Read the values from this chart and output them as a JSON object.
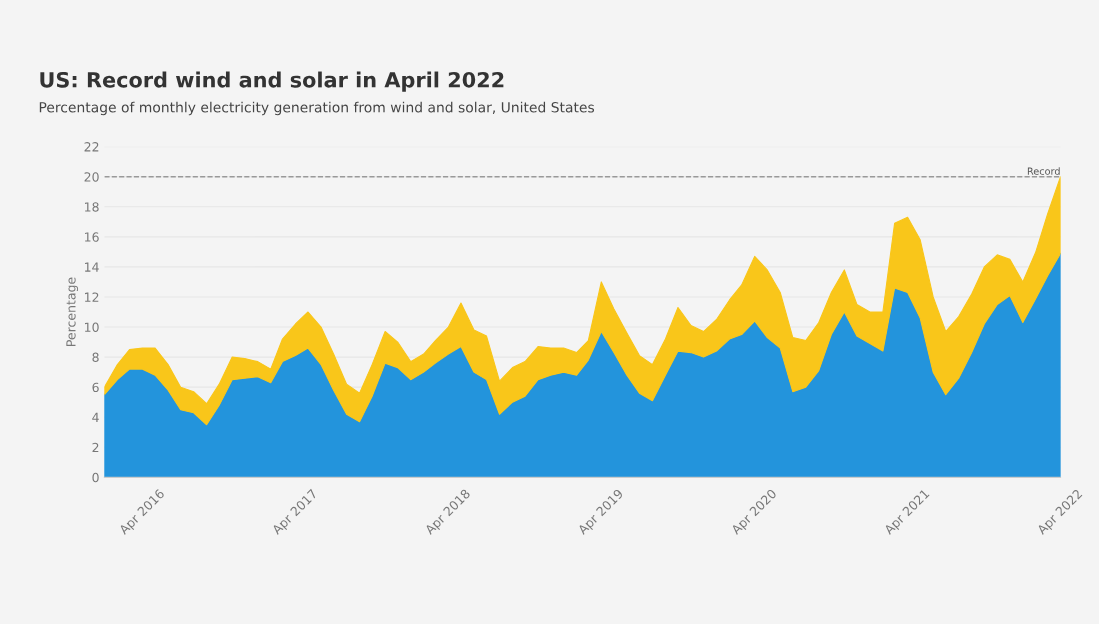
{
  "chart_data": {
    "type": "area",
    "stacked": true,
    "title": "US: Record wind and solar in April 2022",
    "subtitle": "Percentage of monthly electricity generation from wind and solar, United States",
    "ylabel": "Percentage",
    "x": [
      "2016-01",
      "2016-02",
      "2016-03",
      "2016-04",
      "2016-05",
      "2016-06",
      "2016-07",
      "2016-08",
      "2016-09",
      "2016-10",
      "2016-11",
      "2016-12",
      "2017-01",
      "2017-02",
      "2017-03",
      "2017-04",
      "2017-05",
      "2017-06",
      "2017-07",
      "2017-08",
      "2017-09",
      "2017-10",
      "2017-11",
      "2017-12",
      "2018-01",
      "2018-02",
      "2018-03",
      "2018-04",
      "2018-05",
      "2018-06",
      "2018-07",
      "2018-08",
      "2018-09",
      "2018-10",
      "2018-11",
      "2018-12",
      "2019-01",
      "2019-02",
      "2019-03",
      "2019-04",
      "2019-05",
      "2019-06",
      "2019-07",
      "2019-08",
      "2019-09",
      "2019-10",
      "2019-11",
      "2019-12",
      "2020-01",
      "2020-02",
      "2020-03",
      "2020-04",
      "2020-05",
      "2020-06",
      "2020-07",
      "2020-08",
      "2020-09",
      "2020-10",
      "2020-11",
      "2020-12",
      "2021-01",
      "2021-02",
      "2021-03",
      "2021-04",
      "2021-05",
      "2021-06",
      "2021-07",
      "2021-08",
      "2021-09",
      "2021-10",
      "2021-11",
      "2021-12",
      "2022-01",
      "2022-02",
      "2022-03",
      "2022-04"
    ],
    "series": [
      {
        "color": "#2394dc",
        "values": [
          5.5,
          6.5,
          7.2,
          7.2,
          6.8,
          5.8,
          4.5,
          4.3,
          3.5,
          4.8,
          6.5,
          6.6,
          6.7,
          6.3,
          7.7,
          8.1,
          8.6,
          7.5,
          5.8,
          4.2,
          3.7,
          5.4,
          7.6,
          7.3,
          6.5,
          7.0,
          7.6,
          8.2,
          8.7,
          7.0,
          6.5,
          4.2,
          5.0,
          5.4,
          6.5,
          6.8,
          7.0,
          6.8,
          7.8,
          9.7,
          8.3,
          6.8,
          5.6,
          5.1,
          6.8,
          8.4,
          8.3,
          8.0,
          8.4,
          9.2,
          9.5,
          10.4,
          9.3,
          8.6,
          5.7,
          6.0,
          7.1,
          9.5,
          11.0,
          9.4,
          8.9,
          8.4,
          12.6,
          12.3,
          10.6,
          7.0,
          5.5,
          6.6,
          8.3,
          10.2,
          11.5,
          12.1,
          10.3,
          11.9,
          13.4,
          14.9
        ]
      },
      {
        "color": "#f9c61a",
        "values": [
          0.5,
          1.0,
          1.3,
          1.4,
          1.8,
          1.7,
          1.5,
          1.4,
          1.4,
          1.4,
          1.5,
          1.3,
          1.0,
          0.9,
          1.5,
          2.1,
          2.4,
          2.5,
          2.4,
          2.0,
          1.9,
          2.1,
          2.1,
          1.7,
          1.2,
          1.2,
          1.5,
          1.8,
          2.9,
          2.8,
          2.9,
          2.2,
          2.3,
          2.3,
          2.2,
          1.8,
          1.6,
          1.5,
          1.3,
          3.3,
          2.9,
          2.8,
          2.5,
          2.4,
          2.4,
          2.9,
          1.8,
          1.7,
          2.1,
          2.6,
          3.3,
          4.3,
          4.5,
          3.7,
          3.6,
          3.1,
          3.2,
          2.8,
          2.8,
          2.1,
          2.1,
          2.6,
          4.3,
          5.0,
          5.2,
          5.0,
          4.2,
          4.1,
          3.9,
          3.8,
          3.3,
          2.4,
          2.7,
          3.1,
          4.1,
          5.1
        ]
      }
    ],
    "xlim": [
      "2016-01",
      "2022-04"
    ],
    "xticks": [
      {
        "value": "2016-04",
        "label": "Apr 2016"
      },
      {
        "value": "2017-04",
        "label": "Apr 2017"
      },
      {
        "value": "2018-04",
        "label": "Apr 2018"
      },
      {
        "value": "2019-04",
        "label": "Apr 2019"
      },
      {
        "value": "2020-04",
        "label": "Apr 2020"
      },
      {
        "value": "2021-04",
        "label": "Apr 2021"
      },
      {
        "value": "2022-04",
        "label": "Apr 2022"
      }
    ],
    "ylim": [
      0,
      22
    ],
    "yticks": [
      0,
      2,
      4,
      6,
      8,
      10,
      12,
      14,
      16,
      18,
      20,
      22
    ],
    "grid": "y",
    "ref_lines": [
      {
        "axis": "y",
        "value": 20,
        "label": "Record",
        "color": "#999999",
        "line_style": "dashed"
      }
    ]
  }
}
